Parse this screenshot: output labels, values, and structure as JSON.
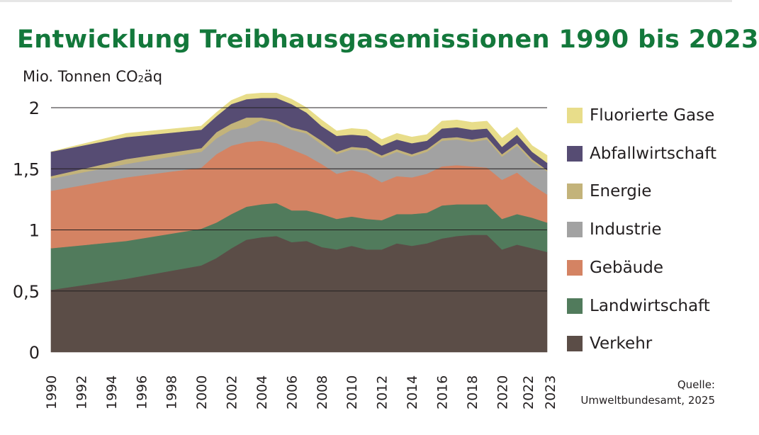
{
  "chart_data": {
    "type": "area",
    "stacked": true,
    "title": "Entwicklung Treibhausgasemissionen 1990 bis 2023",
    "ylabel": "Mio. Tonnen CO",
    "ylabel_sub": "2",
    "ylabel_suffix": "äq",
    "ylim": [
      0,
      2
    ],
    "yticks": [
      0,
      0.5,
      1,
      1.5,
      2
    ],
    "ytick_labels": [
      "0",
      "0,5",
      "1",
      "1,5",
      "2"
    ],
    "xticks": [
      1990,
      1992,
      1994,
      1996,
      1998,
      2000,
      2002,
      2004,
      2006,
      2008,
      2010,
      2012,
      2014,
      2016,
      2018,
      2020,
      2022,
      2023
    ],
    "grid": "horizontal",
    "legend_position": "right",
    "x": [
      1990,
      1995,
      2000,
      2001,
      2002,
      2003,
      2004,
      2005,
      2006,
      2007,
      2008,
      2009,
      2010,
      2011,
      2012,
      2013,
      2014,
      2015,
      2016,
      2017,
      2018,
      2019,
      2020,
      2021,
      2022,
      2023
    ],
    "series": [
      {
        "name": "Verkehr",
        "color": "#5b4d47",
        "values": [
          0.51,
          0.6,
          0.71,
          0.77,
          0.85,
          0.92,
          0.94,
          0.95,
          0.9,
          0.91,
          0.86,
          0.84,
          0.87,
          0.84,
          0.84,
          0.89,
          0.87,
          0.89,
          0.93,
          0.95,
          0.96,
          0.96,
          0.84,
          0.88,
          0.85,
          0.82
        ]
      },
      {
        "name": "Landwirtschaft",
        "color": "#517b5c",
        "values": [
          0.34,
          0.31,
          0.3,
          0.29,
          0.28,
          0.27,
          0.27,
          0.27,
          0.26,
          0.25,
          0.27,
          0.25,
          0.24,
          0.25,
          0.24,
          0.24,
          0.26,
          0.25,
          0.27,
          0.26,
          0.25,
          0.25,
          0.25,
          0.25,
          0.25,
          0.24
        ]
      },
      {
        "name": "Gebäude",
        "color": "#d48363",
        "values": [
          0.47,
          0.52,
          0.5,
          0.56,
          0.56,
          0.53,
          0.52,
          0.49,
          0.5,
          0.45,
          0.41,
          0.37,
          0.38,
          0.37,
          0.31,
          0.31,
          0.3,
          0.32,
          0.32,
          0.32,
          0.31,
          0.3,
          0.32,
          0.34,
          0.27,
          0.23
        ]
      },
      {
        "name": "Industrie",
        "color": "#a2a2a2",
        "values": [
          0.1,
          0.11,
          0.13,
          0.13,
          0.13,
          0.12,
          0.17,
          0.17,
          0.16,
          0.18,
          0.16,
          0.16,
          0.17,
          0.19,
          0.2,
          0.2,
          0.17,
          0.18,
          0.21,
          0.21,
          0.2,
          0.23,
          0.19,
          0.22,
          0.19,
          0.19
        ]
      },
      {
        "name": "Energie",
        "color": "#c3b37a",
        "values": [
          0.02,
          0.04,
          0.03,
          0.05,
          0.05,
          0.08,
          0.02,
          0.02,
          0.02,
          0.02,
          0.03,
          0.02,
          0.02,
          0.02,
          0.02,
          0.02,
          0.02,
          0.02,
          0.02,
          0.02,
          0.02,
          0.02,
          0.02,
          0.02,
          0.02,
          0.01
        ]
      },
      {
        "name": "Abfallwirtschaft",
        "color": "#564c73",
        "values": [
          0.2,
          0.18,
          0.15,
          0.13,
          0.16,
          0.15,
          0.16,
          0.18,
          0.19,
          0.15,
          0.12,
          0.13,
          0.1,
          0.1,
          0.08,
          0.08,
          0.09,
          0.07,
          0.08,
          0.08,
          0.08,
          0.07,
          0.06,
          0.07,
          0.06,
          0.06
        ]
      },
      {
        "name": "Fluorierte Gase",
        "color": "#e8dd8a",
        "values": [
          0.0,
          0.03,
          0.03,
          0.03,
          0.03,
          0.04,
          0.04,
          0.04,
          0.04,
          0.04,
          0.05,
          0.04,
          0.05,
          0.05,
          0.05,
          0.05,
          0.05,
          0.05,
          0.06,
          0.06,
          0.06,
          0.06,
          0.07,
          0.06,
          0.05,
          0.06
        ]
      }
    ],
    "legend_order": [
      "Fluorierte Gase",
      "Abfallwirtschaft",
      "Energie",
      "Industrie",
      "Gebäude",
      "Landwirtschaft",
      "Verkehr"
    ],
    "source_label": "Quelle:",
    "source_text": "Umweltbundesamt, 2025"
  }
}
